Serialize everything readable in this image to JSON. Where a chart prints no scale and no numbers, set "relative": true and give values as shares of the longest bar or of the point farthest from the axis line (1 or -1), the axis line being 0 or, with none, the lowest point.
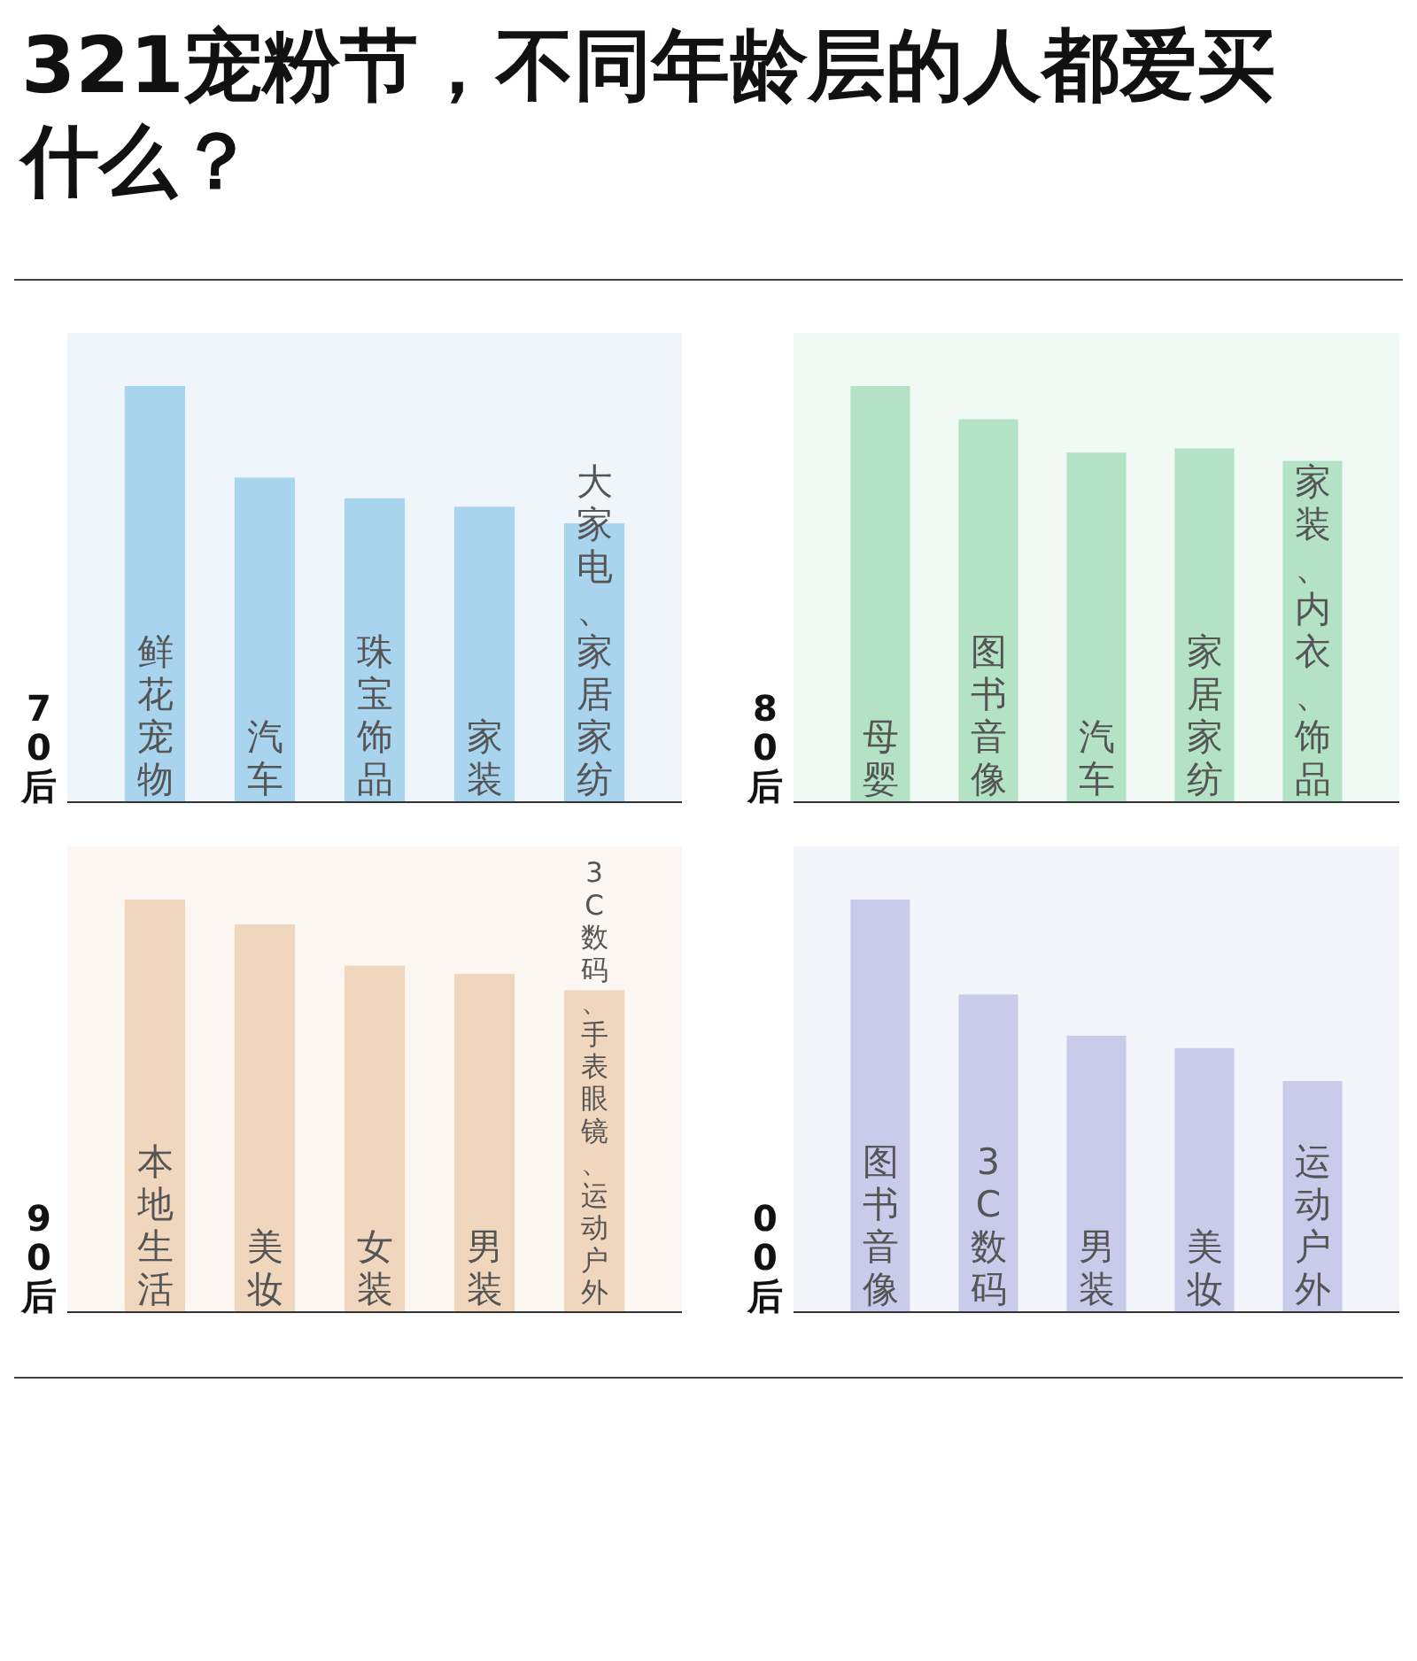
{
  "chart_data": [
    {
      "type": "bar",
      "title": "321宠粉节，不同年龄层的人都爱买什么？",
      "ylabel": "70后",
      "relative": true,
      "categories": [
        "鲜花宠物",
        "汽车",
        "珠宝饰品",
        "家装",
        "大家电、家居家纺"
      ],
      "values": [
        1,
        0.78,
        0.73,
        0.71,
        0.67
      ],
      "color": "#a9d4ee"
    },
    {
      "type": "bar",
      "ylabel": "80后",
      "relative": true,
      "categories": [
        "母婴",
        "图书音像",
        "汽车",
        "家居家纺",
        "家装、内衣、饰品"
      ],
      "values": [
        1,
        0.92,
        0.84,
        0.85,
        0.82
      ],
      "color": "#b3e2c4"
    },
    {
      "type": "bar",
      "ylabel": "90后",
      "relative": true,
      "categories": [
        "本地生活",
        "美妆",
        "女装",
        "男装",
        "3C数码、手表眼镜、运动户外"
      ],
      "values": [
        1,
        0.94,
        0.84,
        0.82,
        0.78
      ],
      "color": "#f1d6be"
    },
    {
      "type": "bar",
      "ylabel": "00后",
      "relative": true,
      "categories": [
        "图书音像",
        "3C数码",
        "男装",
        "美妆",
        "运动户外"
      ],
      "values": [
        1,
        0.77,
        0.67,
        0.64,
        0.56
      ],
      "color": "#cacbeb"
    }
  ]
}
